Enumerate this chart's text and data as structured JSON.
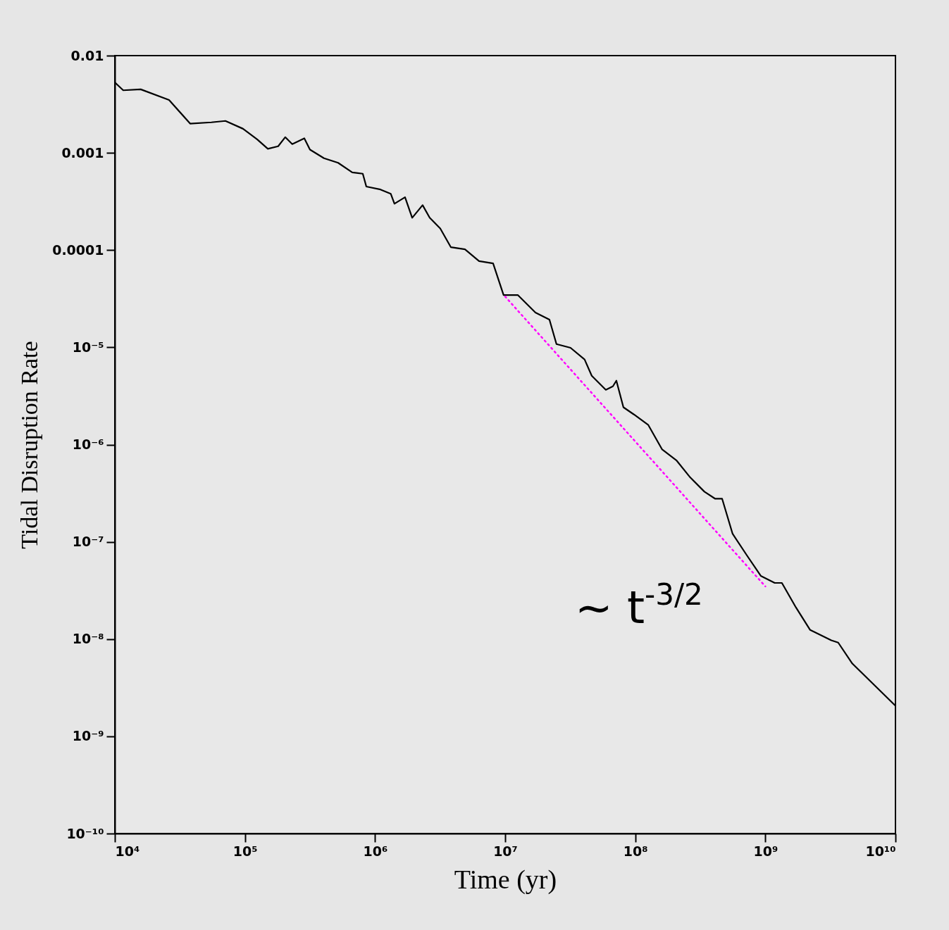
{
  "chart_data": {
    "type": "line",
    "xlabel": "Time (yr)",
    "ylabel": "Tidal Disruption Rate",
    "log": "xy",
    "grid": false,
    "xlim": [
      10000,
      10000000000
    ],
    "ylim": [
      1e-10,
      0.01
    ],
    "xticks": [
      {
        "value": 10000,
        "label": "10⁴"
      },
      {
        "value": 100000,
        "label": "10⁵"
      },
      {
        "value": 1000000,
        "label": "10⁶"
      },
      {
        "value": 10000000,
        "label": "10⁷"
      },
      {
        "value": 100000000,
        "label": "10⁸"
      },
      {
        "value": 1000000000,
        "label": "10⁹"
      },
      {
        "value": 10000000000,
        "label": "10¹⁰"
      }
    ],
    "yticks": [
      {
        "value": 1e-10,
        "label": "10⁻¹⁰"
      },
      {
        "value": 1e-09,
        "label": "10⁻⁹"
      },
      {
        "value": 1e-08,
        "label": "10⁻⁸"
      },
      {
        "value": 1e-07,
        "label": "10⁻⁷"
      },
      {
        "value": 1e-06,
        "label": "10⁻⁶"
      },
      {
        "value": 1e-05,
        "label": "10⁻⁵"
      },
      0.0001,
      0.001,
      0.01
    ],
    "series": [
      {
        "color": "#000000",
        "line_style": "solid",
        "x": [
          10000,
          11600,
          15800,
          26100,
          37900,
          55200,
          70800,
          96600,
          124000,
          150000,
          180000,
          204000,
          231000,
          286000,
          316000,
          405000,
          520000,
          668000,
          805000,
          857000,
          1100000,
          1320000,
          1410000,
          1700000,
          1930000,
          2320000,
          2630000,
          3170000,
          3830000,
          4910000,
          6300000,
          8080000,
          9730000,
          12500000,
          17100000,
          21900000,
          24800000,
          31800000,
          40800000,
          46300000,
          59400000,
          67300000,
          71600000,
          81100000,
          97700000,
          126000000,
          161000000,
          207000000,
          265000000,
          340000000,
          410000000,
          465000000,
          560000000,
          719000000,
          922000000,
          1180000000,
          1340000000,
          1720000000,
          2210000000,
          3210000000,
          3630000000,
          4660000000,
          10000000000
        ],
        "values": [
          0.0053,
          0.0044,
          0.0045,
          0.0035,
          0.002,
          0.00206,
          0.00213,
          0.00177,
          0.00138,
          0.0011,
          0.00117,
          0.00145,
          0.00123,
          0.00141,
          0.00108,
          0.00088,
          0.00079,
          0.00063,
          0.00061,
          0.00045,
          0.00042,
          0.00038,
          0.0003,
          0.00035,
          0.000215,
          0.00029,
          0.000215,
          0.000167,
          0.000107,
          0.000102,
          7.7e-05,
          7.3e-05,
          3.45e-05,
          3.45e-05,
          2.28e-05,
          1.93e-05,
          1.08e-05,
          9.9e-06,
          7.5e-06,
          5.1e-06,
          3.66e-06,
          3.97e-06,
          4.54e-06,
          2.42e-06,
          2.04e-06,
          1.59e-06,
          8.9e-07,
          6.9e-07,
          4.58e-07,
          3.28e-07,
          2.78e-07,
          2.78e-07,
          1.21e-07,
          7.3e-08,
          4.47e-08,
          3.78e-08,
          3.78e-08,
          2.11e-08,
          1.24e-08,
          9.7e-09,
          9.2e-09,
          5.6e-09,
          2.06e-09
        ]
      },
      {
        "color": "#ff00ff",
        "line_style": "dotted",
        "x": [
          10000000,
          1000000000
        ],
        "values": [
          3.33e-05,
          3.48e-08
        ]
      }
    ],
    "annotations": [
      "~ t$^{-3/2}$"
    ]
  }
}
